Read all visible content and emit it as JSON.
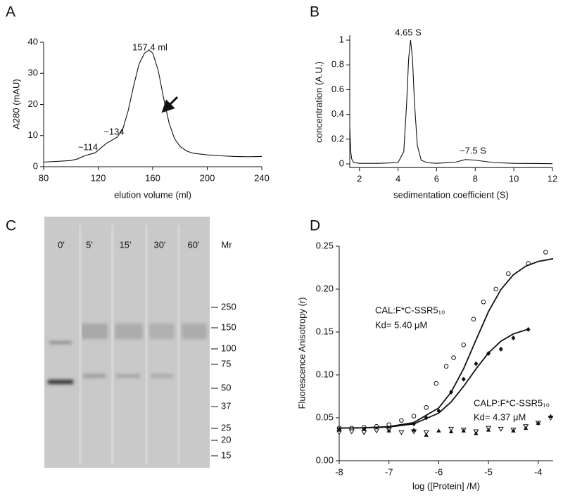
{
  "chart_data": [
    {
      "type": "line",
      "panel": "A",
      "xlabel": "elution volume (ml)",
      "ylabel": "A280 (mAU)",
      "xlim": [
        80,
        240
      ],
      "ylim": [
        0,
        40
      ],
      "xticks": [
        80,
        120,
        160,
        200,
        240
      ],
      "yticks": [
        0,
        10,
        20,
        30,
        40
      ],
      "annotations": [
        "157.4 ml",
        "~134",
        "~114"
      ],
      "series": [
        {
          "color": "#111111",
          "x": [
            80,
            90,
            100,
            105,
            110,
            114,
            118,
            122,
            126,
            130,
            134,
            138,
            142,
            146,
            150,
            154,
            157.4,
            160,
            164,
            168,
            172,
            176,
            180,
            185,
            190,
            200,
            210,
            220,
            230,
            240
          ],
          "values": [
            1.5,
            1.7,
            2,
            2.5,
            3.5,
            4,
            4.5,
            6,
            7.5,
            8.5,
            9.5,
            12,
            18,
            26,
            33,
            36.5,
            37.5,
            36.5,
            31,
            22,
            14,
            9,
            6.5,
            5,
            4.3,
            3.8,
            3.5,
            3.3,
            3.2,
            3.3
          ]
        }
      ]
    },
    {
      "type": "line",
      "panel": "B",
      "xlabel": "sedimentation coefficient (S)",
      "ylabel": "concentration (A.U.)",
      "xlim": [
        1.5,
        12
      ],
      "ylim": [
        -0.03,
        1.04
      ],
      "xticks": [
        2,
        4,
        6,
        8,
        10,
        12
      ],
      "yticks": [
        0,
        0.2,
        0.4,
        0.6,
        0.8,
        1
      ],
      "annotations": [
        "4.65 S",
        "~7.5 S"
      ],
      "series": [
        {
          "color": "#111111",
          "x": [
            1.5,
            1.55,
            1.6,
            1.7,
            2,
            3,
            4,
            4.3,
            4.45,
            4.55,
            4.65,
            4.75,
            4.85,
            5,
            5.2,
            5.5,
            6,
            7,
            7.5,
            8,
            9,
            10,
            12
          ],
          "values": [
            0.3,
            0.1,
            0.04,
            0.01,
            0.005,
            0.005,
            0.01,
            0.1,
            0.5,
            0.85,
            1,
            0.85,
            0.5,
            0.15,
            0.03,
            0.01,
            0.005,
            0.015,
            0.035,
            0.03,
            0.01,
            0.005,
            0.002
          ]
        }
      ]
    },
    {
      "type": "scatter",
      "panel": "D",
      "xlabel": "log ([Protein] /M)",
      "ylabel": "Fluorescence Anisotropy (r)",
      "xlim": [
        -8,
        -3.7
      ],
      "ylim": [
        0,
        0.25
      ],
      "xticks": [
        -8,
        -7,
        -6,
        -5,
        -4
      ],
      "yticks": [
        {
          "value": 0,
          "label": "0.00"
        },
        {
          "value": 0.05,
          "label": "0.05"
        },
        {
          "value": 0.1,
          "label": "0.10"
        },
        {
          "value": 0.15,
          "label": "0.15"
        },
        {
          "value": 0.2,
          "label": "0.20"
        },
        {
          "value": 0.25,
          "label": "0.25"
        }
      ],
      "annotations": [
        "CAL:F*C-SSR5₁₀",
        "Kd= 5.40 μM",
        "CALP:F*C-SSR5₁₀",
        "Kd= 4.37 μM"
      ],
      "series": [
        {
          "marker": "open-circle",
          "color": "#111111",
          "x": [
            -8,
            -7.75,
            -7.5,
            -7.25,
            -7,
            -6.75,
            -6.5,
            -6.25,
            -6.05,
            -5.85,
            -5.7,
            -5.5,
            -5.3,
            -5.1,
            -4.85,
            -4.6,
            -4.2,
            -3.85
          ],
          "values": [
            0.038,
            0.038,
            0.039,
            0.04,
            0.042,
            0.047,
            0.052,
            0.062,
            0.09,
            0.11,
            0.12,
            0.135,
            0.165,
            0.185,
            0.2,
            0.218,
            0.23,
            0.243
          ]
        },
        {
          "marker": "filled-diamond",
          "color": "#111111",
          "x": [
            -8,
            -7.5,
            -7,
            -6.5,
            -6.25,
            -6,
            -5.75,
            -5.5,
            -5.25,
            -5,
            -4.75,
            -4.5,
            -4.2
          ],
          "values": [
            0.037,
            0.037,
            0.038,
            0.043,
            0.05,
            0.058,
            0.08,
            0.095,
            0.113,
            0.125,
            0.13,
            0.143,
            0.153
          ]
        },
        {
          "marker": "open-triangle",
          "color": "#111111",
          "x": [
            -8,
            -7.75,
            -7.5,
            -7.25,
            -7,
            -6.75,
            -6.5,
            -6.25,
            -5.75,
            -5.5,
            -5.25,
            -5,
            -4.75,
            -4.5,
            -4.25,
            -4,
            -3.75
          ],
          "values": [
            0.033,
            0.034,
            0.033,
            0.035,
            0.036,
            0.033,
            0.034,
            0.033,
            0.037,
            0.036,
            0.034,
            0.038,
            0.037,
            0.036,
            0.04,
            0.044,
            0.05
          ]
        },
        {
          "marker": "filled-triangle",
          "color": "#111111",
          "x": [
            -8,
            -7.5,
            -7,
            -6.5,
            -6.25,
            -6,
            -5.75,
            -5.5,
            -5.25,
            -5,
            -4.5,
            -4.25,
            -4,
            -3.75
          ],
          "values": [
            0.036,
            0.037,
            0.035,
            0.036,
            0.03,
            0.035,
            0.034,
            0.035,
            0.032,
            0.036,
            0.035,
            0.038,
            0.044,
            0.052
          ]
        },
        {
          "marker": "line",
          "color": "#111111",
          "x": [
            -8,
            -7.5,
            -7,
            -6.5,
            -6,
            -5.75,
            -5.5,
            -5.25,
            -5,
            -4.75,
            -4.5,
            -4.25,
            -4,
            -3.7
          ],
          "values": [
            0.0381,
            0.0384,
            0.0397,
            0.0445,
            0.0615,
            0.0799,
            0.1072,
            0.1408,
            0.1737,
            0.1995,
            0.2167,
            0.2267,
            0.2322,
            0.2354
          ]
        },
        {
          "marker": "line",
          "color": "#111111",
          "x": [
            -8,
            -7.5,
            -7,
            -6.5,
            -6,
            -5.75,
            -5.5,
            -5.25,
            -5,
            -4.75,
            -4.5,
            -4.2
          ],
          "values": [
            0.0381,
            0.0383,
            0.0393,
            0.0429,
            0.0555,
            0.0685,
            0.0866,
            0.107,
            0.1256,
            0.1393,
            0.1478,
            0.1533
          ]
        }
      ]
    }
  ],
  "gel": {
    "panel": "C",
    "lanes": [
      "0'",
      "5'",
      "15'",
      "30'",
      "60'"
    ],
    "mr_label": "Mr",
    "markers": [
      250,
      150,
      100,
      75,
      50,
      37,
      25,
      20,
      15
    ]
  }
}
